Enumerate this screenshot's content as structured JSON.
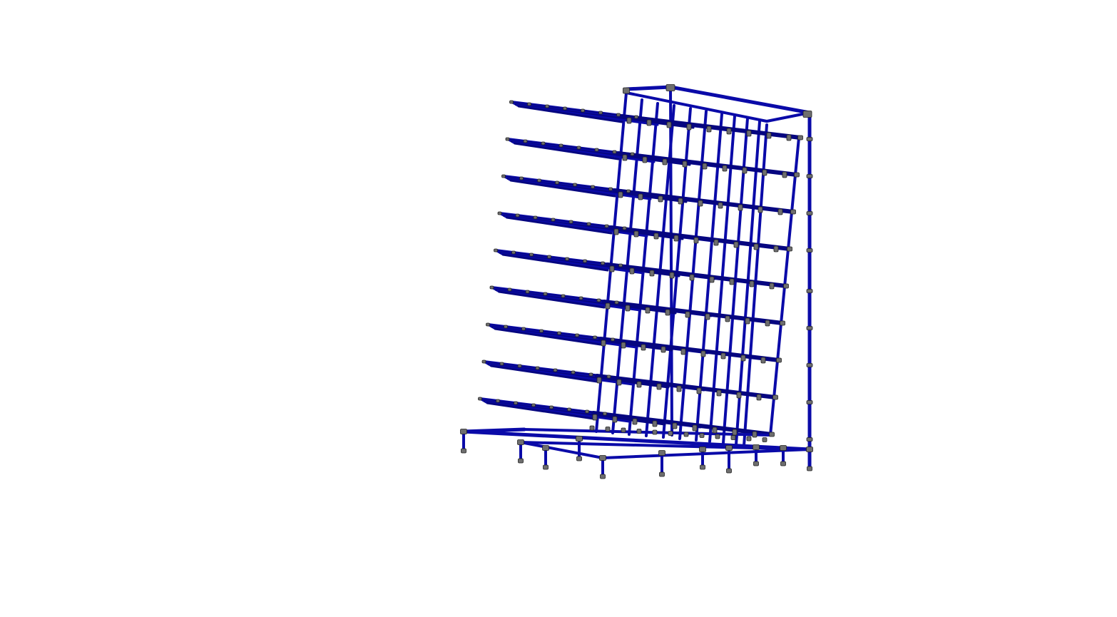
{
  "viewport": {
    "background_color": "#ffffff",
    "model": {
      "pipe_color": "#0a0aa8",
      "pipe_dark_color": "#060680",
      "fitting_color": "#6e6e6e",
      "fitting_outline_color": "#222222",
      "shelf_levels": 9
    }
  }
}
